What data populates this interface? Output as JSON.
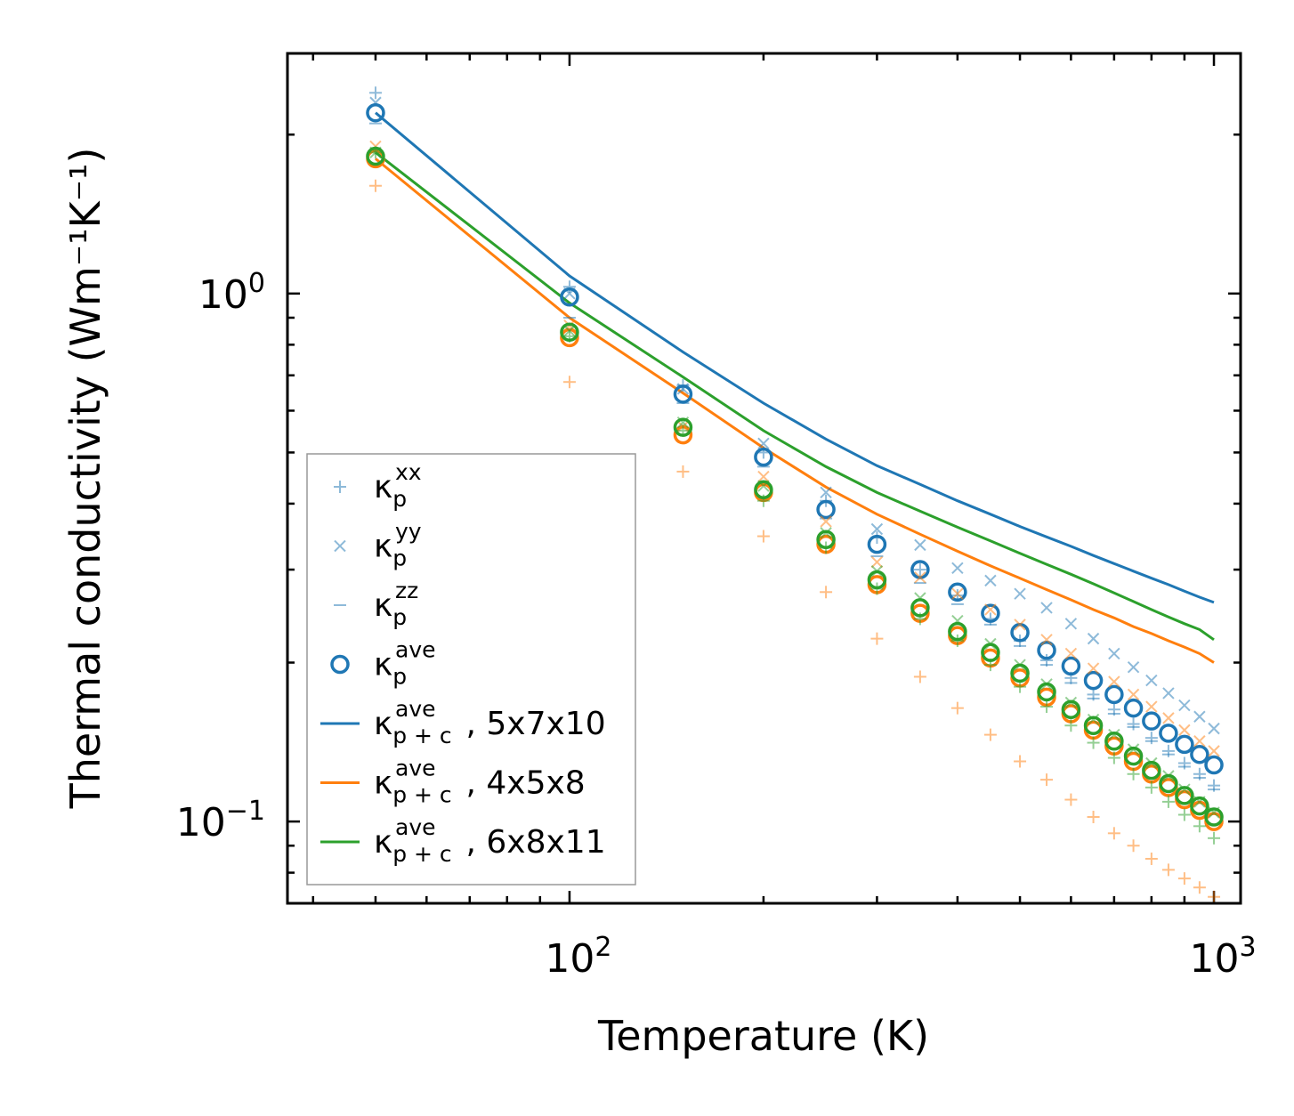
{
  "chart_data": {
    "type": "scatter",
    "xscale": "log",
    "yscale": "log",
    "xlabel": "Temperature (K)",
    "ylabel": "Thermal conductivity (Wm⁻¹K⁻¹)",
    "xlim": [
      36.5,
      1100
    ],
    "ylim": [
      0.07,
      2.85
    ],
    "x_ticks": [
      {
        "value": 100,
        "base": "10",
        "exp": "2"
      },
      {
        "value": 1000,
        "base": "10",
        "exp": "3"
      }
    ],
    "y_ticks": [
      {
        "value": 1,
        "base": "10",
        "exp": "0"
      },
      {
        "value": 0.1,
        "base": "10",
        "exp": "−1"
      }
    ],
    "x": [
      50,
      100,
      150,
      200,
      250,
      300,
      350,
      400,
      450,
      500,
      550,
      600,
      650,
      700,
      750,
      800,
      850,
      900,
      950,
      1000
    ],
    "colors": {
      "blue": "#1f77b4",
      "orange": "#ff7f0e",
      "green": "#2ca02c"
    },
    "series": [
      {
        "name": "kxx_blue",
        "marker": "plus",
        "color": "#1f77b4",
        "alpha": 0.5,
        "values": [
          2.4,
          1.03,
          0.67,
          0.5,
          0.405,
          0.345,
          0.3,
          0.268,
          0.242,
          0.22,
          0.202,
          0.187,
          0.174,
          0.163,
          0.153,
          0.144,
          0.136,
          0.129,
          0.123,
          0.117
        ]
      },
      {
        "name": "kyy_blue",
        "marker": "x",
        "color": "#1f77b4",
        "alpha": 0.5,
        "values": [
          2.3,
          1.0,
          0.66,
          0.52,
          0.42,
          0.358,
          0.334,
          0.302,
          0.286,
          0.27,
          0.254,
          0.237,
          0.222,
          0.208,
          0.196,
          0.185,
          0.175,
          0.166,
          0.158,
          0.15
        ]
      },
      {
        "name": "kzz_blue",
        "marker": "dash",
        "color": "#1f77b4",
        "alpha": 0.5,
        "values": [
          2.1,
          0.9,
          0.62,
          0.47,
          0.375,
          0.318,
          0.283,
          0.258,
          0.236,
          0.215,
          0.198,
          0.183,
          0.171,
          0.16,
          0.151,
          0.142,
          0.134,
          0.127,
          0.121,
          0.115
        ]
      },
      {
        "name": "kave_blue",
        "marker": "circle",
        "color": "#1f77b4",
        "alpha": 1,
        "values": [
          2.2,
          0.985,
          0.645,
          0.49,
          0.39,
          0.335,
          0.3,
          0.272,
          0.248,
          0.228,
          0.211,
          0.197,
          0.185,
          0.174,
          0.164,
          0.155,
          0.147,
          0.14,
          0.134,
          0.128
        ]
      },
      {
        "name": "kxx_orange",
        "marker": "plus",
        "color": "#ff7f0e",
        "alpha": 0.5,
        "values": [
          1.6,
          0.68,
          0.46,
          0.347,
          0.272,
          0.222,
          0.188,
          0.164,
          0.146,
          0.13,
          0.12,
          0.11,
          0.102,
          0.095,
          0.09,
          0.085,
          0.081,
          0.078,
          0.075,
          0.072
        ]
      },
      {
        "name": "kyy_orange",
        "marker": "x",
        "color": "#ff7f0e",
        "alpha": 0.5,
        "values": [
          1.9,
          0.87,
          0.56,
          0.45,
          0.37,
          0.31,
          0.29,
          0.27,
          0.252,
          0.236,
          0.221,
          0.208,
          0.195,
          0.184,
          0.174,
          0.165,
          0.157,
          0.149,
          0.142,
          0.136
        ]
      },
      {
        "name": "kave_orange",
        "marker": "circle",
        "color": "#ff7f0e",
        "alpha": 1,
        "values": [
          1.8,
          0.825,
          0.54,
          0.42,
          0.335,
          0.281,
          0.248,
          0.225,
          0.204,
          0.187,
          0.172,
          0.16,
          0.149,
          0.139,
          0.13,
          0.123,
          0.116,
          0.11,
          0.105,
          0.1
        ]
      },
      {
        "name": "kxx_green",
        "marker": "plus",
        "color": "#2ca02c",
        "alpha": 0.5,
        "values": [
          1.85,
          0.83,
          0.55,
          0.405,
          0.33,
          0.276,
          0.242,
          0.22,
          0.198,
          0.18,
          0.165,
          0.152,
          0.141,
          0.132,
          0.123,
          0.116,
          0.109,
          0.103,
          0.098,
          0.093
        ]
      },
      {
        "name": "kyy_green",
        "marker": "x",
        "color": "#2ca02c",
        "alpha": 0.5,
        "values": [
          1.85,
          0.85,
          0.57,
          0.432,
          0.352,
          0.298,
          0.265,
          0.24,
          0.217,
          0.198,
          0.182,
          0.168,
          0.156,
          0.146,
          0.137,
          0.129,
          0.122,
          0.115,
          0.109,
          0.104
        ]
      },
      {
        "name": "kave_green",
        "marker": "circle",
        "color": "#2ca02c",
        "alpha": 1,
        "values": [
          1.82,
          0.845,
          0.558,
          0.425,
          0.342,
          0.287,
          0.254,
          0.229,
          0.209,
          0.191,
          0.176,
          0.163,
          0.152,
          0.142,
          0.133,
          0.125,
          0.118,
          0.112,
          0.107,
          0.102
        ]
      },
      {
        "name": "kpc_5x7x10",
        "marker": "line",
        "color": "#1f77b4",
        "alpha": 1,
        "values": [
          2.2,
          1.08,
          0.775,
          0.62,
          0.53,
          0.472,
          0.435,
          0.405,
          0.382,
          0.362,
          0.346,
          0.332,
          0.319,
          0.308,
          0.298,
          0.289,
          0.281,
          0.273,
          0.266,
          0.26
        ]
      },
      {
        "name": "kpc_4x5x8",
        "marker": "line",
        "color": "#ff7f0e",
        "alpha": 1,
        "values": [
          1.8,
          0.9,
          0.648,
          0.51,
          0.43,
          0.382,
          0.35,
          0.325,
          0.305,
          0.289,
          0.275,
          0.263,
          0.252,
          0.243,
          0.234,
          0.227,
          0.22,
          0.214,
          0.208,
          0.2
        ]
      },
      {
        "name": "kpc_6x8x11",
        "marker": "line",
        "color": "#2ca02c",
        "alpha": 1,
        "values": [
          1.85,
          0.96,
          0.695,
          0.55,
          0.47,
          0.42,
          0.387,
          0.361,
          0.34,
          0.322,
          0.307,
          0.294,
          0.282,
          0.271,
          0.261,
          0.252,
          0.244,
          0.237,
          0.231,
          0.221
        ]
      }
    ],
    "legend": {
      "placement": "lower-left",
      "entries": [
        {
          "symbol": "plus",
          "color": "#1f77b4",
          "alpha": 0.5,
          "base": "κ",
          "sup": "xx",
          "sub": "p",
          "suffix": ""
        },
        {
          "symbol": "x",
          "color": "#1f77b4",
          "alpha": 0.5,
          "base": "κ",
          "sup": "yy",
          "sub": "p",
          "suffix": ""
        },
        {
          "symbol": "dash",
          "color": "#1f77b4",
          "alpha": 0.5,
          "base": "κ",
          "sup": "zz",
          "sub": "p",
          "suffix": ""
        },
        {
          "symbol": "circle",
          "color": "#1f77b4",
          "alpha": 1,
          "base": "κ",
          "sup": "ave",
          "sub": "p",
          "suffix": ""
        },
        {
          "symbol": "line",
          "color": "#1f77b4",
          "alpha": 1,
          "base": "κ",
          "sup": "ave",
          "sub": "p + c",
          "suffix": ", 5x7x10"
        },
        {
          "symbol": "line",
          "color": "#ff7f0e",
          "alpha": 1,
          "base": "κ",
          "sup": "ave",
          "sub": "p + c",
          "suffix": ", 4x5x8"
        },
        {
          "symbol": "line",
          "color": "#2ca02c",
          "alpha": 1,
          "base": "κ",
          "sup": "ave",
          "sub": "p + c",
          "suffix": ", 6x8x11"
        }
      ]
    }
  }
}
